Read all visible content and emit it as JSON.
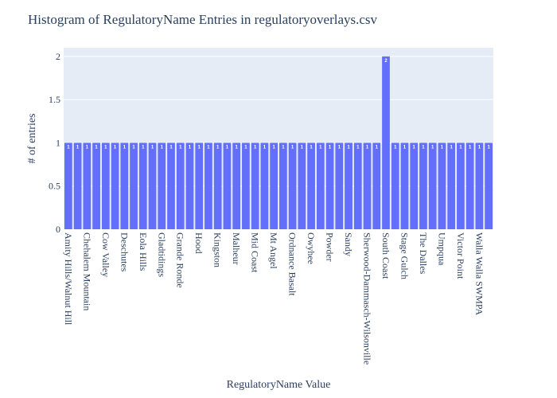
{
  "chart_data": {
    "type": "bar",
    "title": "Histogram of RegulatoryName Entries in regulatoryoverlays.csv",
    "xlabel": "RegulatoryName Value",
    "ylabel": "# of entries",
    "ylim": [
      0,
      2.1
    ],
    "y_ticks": [
      0,
      0.5,
      1,
      1.5,
      2
    ],
    "y_tick_labels": [
      "0",
      "0.5",
      "1",
      "1.5",
      "2"
    ],
    "categories": [
      "Amity Hills/Walnut Hill",
      "",
      "Chehalem Mountain",
      "",
      "Cow Valley",
      "",
      "Deschutes",
      "",
      "Eola Hills",
      "",
      "Gladtidings",
      "",
      "Grande Ronde",
      "",
      "Hood",
      "",
      "Kingston",
      "",
      "Malheur",
      "",
      "Mid Coast",
      "",
      "Mt Angel",
      "",
      "Ordnance Basalt",
      "",
      "Owyhee",
      "",
      "Powder",
      "",
      "Sandy",
      "",
      "Sherwood-Dammasch-Wilsonville",
      "",
      "South Coast",
      "",
      "Stage Gulch",
      "",
      "The Dalles",
      "",
      "Umpqua",
      "",
      "Victor Point",
      "",
      "Walla Walla SWMPA",
      ""
    ],
    "values": [
      1,
      1,
      1,
      1,
      1,
      1,
      1,
      1,
      1,
      1,
      1,
      1,
      1,
      1,
      1,
      1,
      1,
      1,
      1,
      1,
      1,
      1,
      1,
      1,
      1,
      1,
      1,
      1,
      1,
      1,
      1,
      1,
      1,
      1,
      2,
      1,
      1,
      1,
      1,
      1,
      1,
      1,
      1,
      1,
      1,
      1
    ],
    "data_labels": [
      "1",
      "1",
      "1",
      "1",
      "1",
      "1",
      "1",
      "1",
      "1",
      "1",
      "1",
      "1",
      "1",
      "1",
      "1",
      "1",
      "1",
      "1",
      "1",
      "1",
      "1",
      "1",
      "1",
      "1",
      "1",
      "1",
      "1",
      "1",
      "1",
      "1",
      "1",
      "1",
      "1",
      "1",
      "2",
      "1",
      "1",
      "1",
      "1",
      "1",
      "1",
      "1",
      "1",
      "1",
      "1",
      "1"
    ],
    "grid": true,
    "colors": {
      "bar": "#636efa",
      "plot_bg": "#e5ecf6",
      "grid": "#ffffff",
      "text": "#2a3f5f"
    }
  }
}
